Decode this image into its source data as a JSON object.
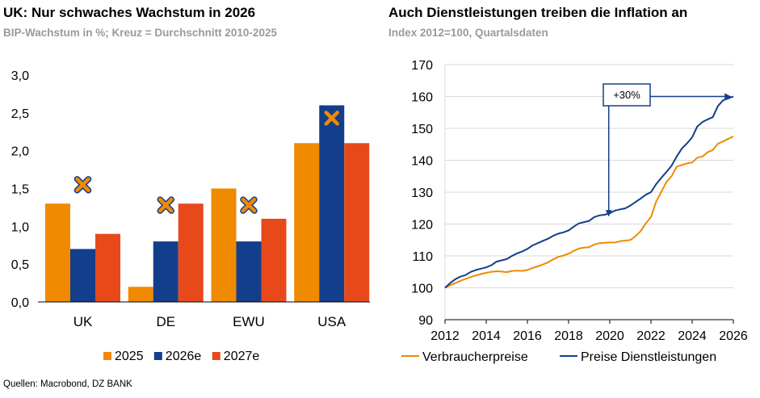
{
  "left": {
    "title": "UK: Nur schwaches Wachstum in 2026",
    "subtitle": "BIP-Wachstum in %; Kreuz = Durchschnitt 2010-2025"
  },
  "right": {
    "title": "Auch Dienstleistungen treiben die Inflation an",
    "subtitle": "Index 2012=100, Quartalsdaten"
  },
  "source": "Quellen: Macrobond, DZ BANK",
  "colors": {
    "s2025": "#f08a00",
    "s2026e": "#133e8c",
    "s2027e": "#e8491b",
    "cross": "#f08a00",
    "cross_outline": "#133e8c",
    "line_consumer": "#f08a00",
    "line_services": "#133e8c"
  },
  "chart_data": [
    {
      "type": "bar",
      "categories": [
        "UK",
        "DE",
        "EWU",
        "USA"
      ],
      "series": [
        {
          "name": "2025",
          "values": [
            1.3,
            0.2,
            1.5,
            2.1
          ]
        },
        {
          "name": "2026e",
          "values": [
            0.7,
            0.8,
            0.8,
            2.6
          ]
        },
        {
          "name": "2027e",
          "values": [
            0.9,
            1.3,
            1.1,
            2.1
          ]
        }
      ],
      "average_cross": [
        1.55,
        1.28,
        1.28,
        2.43
      ],
      "y_ticks": [
        "0,0",
        "0,5",
        "1,0",
        "1,5",
        "2,0",
        "2,5",
        "3,0"
      ],
      "ylim": [
        0,
        3
      ],
      "grid": false,
      "legend": "bottom"
    },
    {
      "type": "line",
      "x": [
        2012.0,
        2012.25,
        2012.5,
        2012.75,
        2013.0,
        2013.25,
        2013.5,
        2013.75,
        2014.0,
        2014.25,
        2014.5,
        2014.75,
        2015.0,
        2015.25,
        2015.5,
        2015.75,
        2016.0,
        2016.25,
        2016.5,
        2016.75,
        2017.0,
        2017.25,
        2017.5,
        2017.75,
        2018.0,
        2018.25,
        2018.5,
        2018.75,
        2019.0,
        2019.25,
        2019.5,
        2019.75,
        2020.0,
        2020.25,
        2020.5,
        2020.75,
        2021.0,
        2021.25,
        2021.5,
        2021.75,
        2022.0,
        2022.25,
        2022.5,
        2022.75,
        2023.0,
        2023.25,
        2023.5,
        2023.75,
        2024.0,
        2024.25,
        2024.5,
        2024.75,
        2025.0,
        2025.25,
        2025.5,
        2025.75,
        2026.0
      ],
      "series": [
        {
          "name": "Verbraucherpreise",
          "values": [
            100.0,
            100.8,
            101.5,
            102.2,
            102.8,
            103.4,
            103.9,
            104.3,
            104.7,
            105.0,
            105.2,
            105.1,
            104.9,
            105.3,
            105.4,
            105.3,
            105.6,
            106.2,
            106.7,
            107.3,
            108.0,
            108.9,
            109.7,
            110.1,
            110.7,
            111.6,
            112.3,
            112.6,
            112.7,
            113.6,
            114.0,
            114.1,
            114.2,
            114.2,
            114.6,
            114.8,
            115.0,
            116.2,
            117.8,
            120.2,
            122.2,
            127.0,
            130.1,
            133.2,
            135.0,
            138.0,
            138.5,
            139.0,
            139.3,
            140.8,
            141.2,
            142.5,
            143.2,
            145.2,
            145.9,
            146.7,
            147.5
          ]
        },
        {
          "name": "Preise Dienstleistungen",
          "values": [
            100.0,
            101.5,
            102.7,
            103.5,
            104.0,
            105.0,
            105.6,
            106.0,
            106.4,
            107.1,
            108.2,
            108.6,
            109.0,
            110.0,
            110.8,
            111.4,
            112.2,
            113.3,
            114.0,
            114.7,
            115.4,
            116.3,
            117.0,
            117.4,
            118.0,
            119.2,
            120.2,
            120.6,
            121.0,
            122.2,
            122.7,
            122.9,
            123.4,
            124.2,
            124.6,
            124.9,
            125.8,
            126.9,
            128.0,
            129.2,
            130.0,
            132.5,
            134.5,
            136.3,
            138.3,
            141.2,
            143.7,
            145.3,
            147.2,
            150.6,
            152.0,
            152.8,
            153.5,
            157.0,
            158.8,
            159.4,
            160.0
          ]
        }
      ],
      "annotation": "+30%",
      "x_ticks": [
        "2012",
        "2014",
        "2016",
        "2018",
        "2020",
        "2022",
        "2024",
        "2026"
      ],
      "y_ticks": [
        "90",
        "100",
        "110",
        "120",
        "130",
        "140",
        "150",
        "160",
        "170"
      ],
      "xlim": [
        2012,
        2026
      ],
      "ylim": [
        90,
        170
      ],
      "grid": true,
      "legend": "bottom"
    }
  ]
}
